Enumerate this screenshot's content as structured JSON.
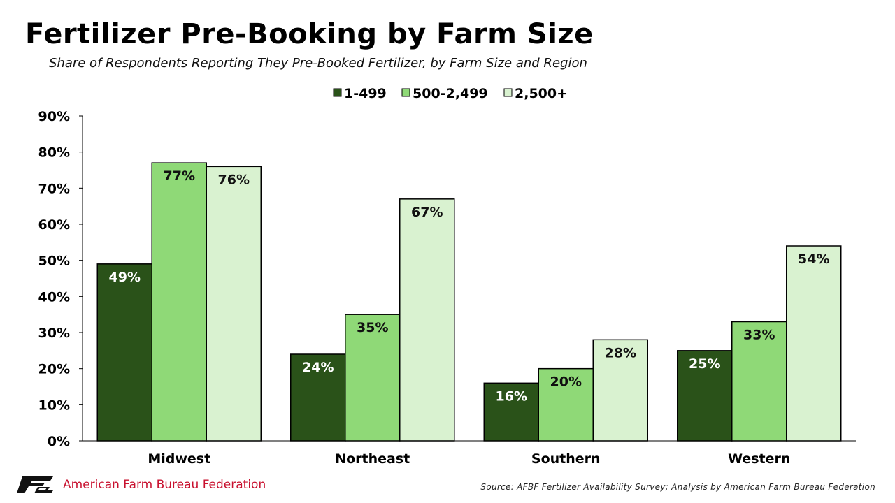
{
  "header": {
    "title": "Fertilizer Pre-Booking by Farm Size",
    "subtitle": "Share of Respondents Reporting They Pre-Booked Fertilizer, by Farm Size and Region"
  },
  "chart_data": {
    "type": "bar",
    "categories": [
      "Midwest",
      "Northeast",
      "Southern",
      "Western"
    ],
    "series": [
      {
        "name": "1-499",
        "values": [
          49,
          24,
          16,
          25
        ],
        "labels": [
          "49%",
          "24%",
          "16%",
          "25%"
        ],
        "color": "#2a5219",
        "label_color": "#ffffff"
      },
      {
        "name": "500-2,499",
        "values": [
          77,
          35,
          20,
          33
        ],
        "labels": [
          "77%",
          "35%",
          "20%",
          "33%"
        ],
        "color": "#8fd977",
        "label_color": "#111111"
      },
      {
        "name": "2,500+",
        "values": [
          76,
          67,
          28,
          54
        ],
        "labels": [
          "76%",
          "67%",
          "28%",
          "54%"
        ],
        "color": "#d9f2d0",
        "label_color": "#111111"
      }
    ],
    "y_ticks": [
      "0%",
      "10%",
      "20%",
      "30%",
      "40%",
      "50%",
      "60%",
      "70%",
      "80%",
      "90%"
    ],
    "ylim": [
      0,
      90
    ],
    "legend_position": "top-center",
    "grid": false
  },
  "footer": {
    "logo_text": "FB",
    "org_name": "American Farm Bureau Federation",
    "source": "Source: AFBF Fertilizer Availability Survey; Analysis by American Farm Bureau Federation"
  },
  "colors": {
    "brand_red": "#c8102e"
  }
}
